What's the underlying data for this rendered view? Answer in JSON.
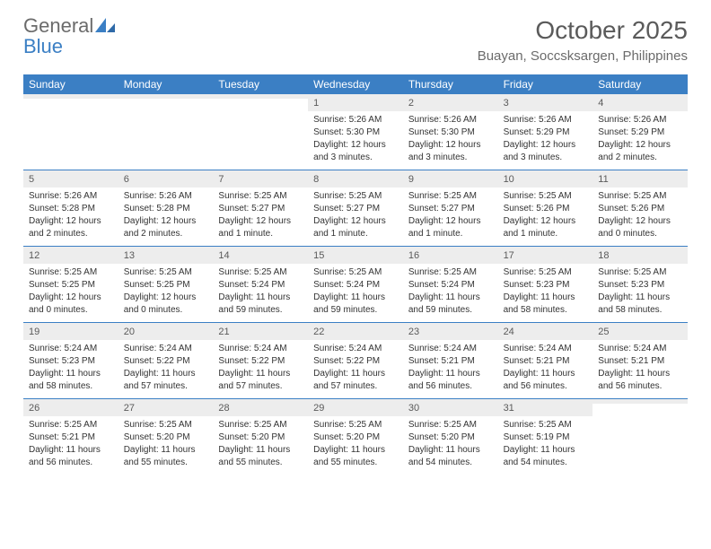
{
  "logo": {
    "text_general": "General",
    "text_blue": "Blue"
  },
  "header": {
    "month_title": "October 2025",
    "location": "Buayan, Soccsksargen, Philippines"
  },
  "colors": {
    "header_bar": "#3b7fc4",
    "daynum_bg": "#ededed",
    "text": "#333333",
    "title_text": "#5a5a5a"
  },
  "weekdays": [
    "Sunday",
    "Monday",
    "Tuesday",
    "Wednesday",
    "Thursday",
    "Friday",
    "Saturday"
  ],
  "weeks": [
    [
      {
        "n": "",
        "lines": []
      },
      {
        "n": "",
        "lines": []
      },
      {
        "n": "",
        "lines": []
      },
      {
        "n": "1",
        "lines": [
          "Sunrise: 5:26 AM",
          "Sunset: 5:30 PM",
          "Daylight: 12 hours",
          "and 3 minutes."
        ]
      },
      {
        "n": "2",
        "lines": [
          "Sunrise: 5:26 AM",
          "Sunset: 5:30 PM",
          "Daylight: 12 hours",
          "and 3 minutes."
        ]
      },
      {
        "n": "3",
        "lines": [
          "Sunrise: 5:26 AM",
          "Sunset: 5:29 PM",
          "Daylight: 12 hours",
          "and 3 minutes."
        ]
      },
      {
        "n": "4",
        "lines": [
          "Sunrise: 5:26 AM",
          "Sunset: 5:29 PM",
          "Daylight: 12 hours",
          "and 2 minutes."
        ]
      }
    ],
    [
      {
        "n": "5",
        "lines": [
          "Sunrise: 5:26 AM",
          "Sunset: 5:28 PM",
          "Daylight: 12 hours",
          "and 2 minutes."
        ]
      },
      {
        "n": "6",
        "lines": [
          "Sunrise: 5:26 AM",
          "Sunset: 5:28 PM",
          "Daylight: 12 hours",
          "and 2 minutes."
        ]
      },
      {
        "n": "7",
        "lines": [
          "Sunrise: 5:25 AM",
          "Sunset: 5:27 PM",
          "Daylight: 12 hours",
          "and 1 minute."
        ]
      },
      {
        "n": "8",
        "lines": [
          "Sunrise: 5:25 AM",
          "Sunset: 5:27 PM",
          "Daylight: 12 hours",
          "and 1 minute."
        ]
      },
      {
        "n": "9",
        "lines": [
          "Sunrise: 5:25 AM",
          "Sunset: 5:27 PM",
          "Daylight: 12 hours",
          "and 1 minute."
        ]
      },
      {
        "n": "10",
        "lines": [
          "Sunrise: 5:25 AM",
          "Sunset: 5:26 PM",
          "Daylight: 12 hours",
          "and 1 minute."
        ]
      },
      {
        "n": "11",
        "lines": [
          "Sunrise: 5:25 AM",
          "Sunset: 5:26 PM",
          "Daylight: 12 hours",
          "and 0 minutes."
        ]
      }
    ],
    [
      {
        "n": "12",
        "lines": [
          "Sunrise: 5:25 AM",
          "Sunset: 5:25 PM",
          "Daylight: 12 hours",
          "and 0 minutes."
        ]
      },
      {
        "n": "13",
        "lines": [
          "Sunrise: 5:25 AM",
          "Sunset: 5:25 PM",
          "Daylight: 12 hours",
          "and 0 minutes."
        ]
      },
      {
        "n": "14",
        "lines": [
          "Sunrise: 5:25 AM",
          "Sunset: 5:24 PM",
          "Daylight: 11 hours",
          "and 59 minutes."
        ]
      },
      {
        "n": "15",
        "lines": [
          "Sunrise: 5:25 AM",
          "Sunset: 5:24 PM",
          "Daylight: 11 hours",
          "and 59 minutes."
        ]
      },
      {
        "n": "16",
        "lines": [
          "Sunrise: 5:25 AM",
          "Sunset: 5:24 PM",
          "Daylight: 11 hours",
          "and 59 minutes."
        ]
      },
      {
        "n": "17",
        "lines": [
          "Sunrise: 5:25 AM",
          "Sunset: 5:23 PM",
          "Daylight: 11 hours",
          "and 58 minutes."
        ]
      },
      {
        "n": "18",
        "lines": [
          "Sunrise: 5:25 AM",
          "Sunset: 5:23 PM",
          "Daylight: 11 hours",
          "and 58 minutes."
        ]
      }
    ],
    [
      {
        "n": "19",
        "lines": [
          "Sunrise: 5:24 AM",
          "Sunset: 5:23 PM",
          "Daylight: 11 hours",
          "and 58 minutes."
        ]
      },
      {
        "n": "20",
        "lines": [
          "Sunrise: 5:24 AM",
          "Sunset: 5:22 PM",
          "Daylight: 11 hours",
          "and 57 minutes."
        ]
      },
      {
        "n": "21",
        "lines": [
          "Sunrise: 5:24 AM",
          "Sunset: 5:22 PM",
          "Daylight: 11 hours",
          "and 57 minutes."
        ]
      },
      {
        "n": "22",
        "lines": [
          "Sunrise: 5:24 AM",
          "Sunset: 5:22 PM",
          "Daylight: 11 hours",
          "and 57 minutes."
        ]
      },
      {
        "n": "23",
        "lines": [
          "Sunrise: 5:24 AM",
          "Sunset: 5:21 PM",
          "Daylight: 11 hours",
          "and 56 minutes."
        ]
      },
      {
        "n": "24",
        "lines": [
          "Sunrise: 5:24 AM",
          "Sunset: 5:21 PM",
          "Daylight: 11 hours",
          "and 56 minutes."
        ]
      },
      {
        "n": "25",
        "lines": [
          "Sunrise: 5:24 AM",
          "Sunset: 5:21 PM",
          "Daylight: 11 hours",
          "and 56 minutes."
        ]
      }
    ],
    [
      {
        "n": "26",
        "lines": [
          "Sunrise: 5:25 AM",
          "Sunset: 5:21 PM",
          "Daylight: 11 hours",
          "and 56 minutes."
        ]
      },
      {
        "n": "27",
        "lines": [
          "Sunrise: 5:25 AM",
          "Sunset: 5:20 PM",
          "Daylight: 11 hours",
          "and 55 minutes."
        ]
      },
      {
        "n": "28",
        "lines": [
          "Sunrise: 5:25 AM",
          "Sunset: 5:20 PM",
          "Daylight: 11 hours",
          "and 55 minutes."
        ]
      },
      {
        "n": "29",
        "lines": [
          "Sunrise: 5:25 AM",
          "Sunset: 5:20 PM",
          "Daylight: 11 hours",
          "and 55 minutes."
        ]
      },
      {
        "n": "30",
        "lines": [
          "Sunrise: 5:25 AM",
          "Sunset: 5:20 PM",
          "Daylight: 11 hours",
          "and 54 minutes."
        ]
      },
      {
        "n": "31",
        "lines": [
          "Sunrise: 5:25 AM",
          "Sunset: 5:19 PM",
          "Daylight: 11 hours",
          "and 54 minutes."
        ]
      },
      {
        "n": "",
        "lines": []
      }
    ]
  ]
}
